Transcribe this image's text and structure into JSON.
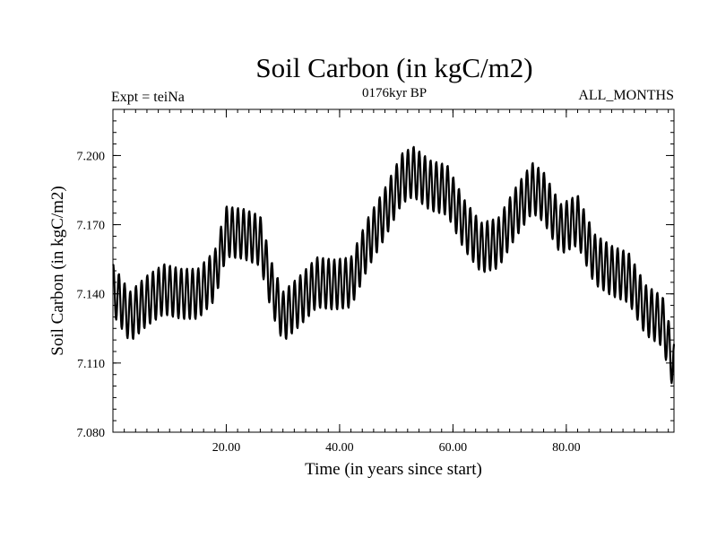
{
  "chart_data": {
    "type": "line",
    "title": "Soil Carbon (in kgC/m2)",
    "subtitle_left": "Expt = teiNa",
    "subtitle_center": "0176kyr BP",
    "subtitle_right": "ALL_MONTHS",
    "xlabel": "Time (in years since start)",
    "ylabel": "Soil Carbon (in kgC/m2)",
    "xlim": [
      0,
      99
    ],
    "ylim": [
      7.08,
      7.22
    ],
    "x_ticks": [
      20,
      40,
      60,
      80
    ],
    "x_tick_labels": [
      "20.00",
      "40.00",
      "60.00",
      "80.00"
    ],
    "y_ticks": [
      7.08,
      7.11,
      7.14,
      7.17,
      7.2
    ],
    "y_tick_labels": [
      "7.080",
      "7.110",
      "7.140",
      "7.170",
      "7.200"
    ],
    "seasonal_amplitude": 0.011,
    "series": [
      {
        "name": "Soil Carbon",
        "annual_mean_x": [
          0,
          3,
          6,
          9,
          12,
          15,
          18,
          20,
          23,
          26,
          28,
          30,
          33,
          36,
          39,
          42,
          45,
          48,
          51,
          53,
          56,
          59,
          62,
          65,
          68,
          71,
          74,
          76,
          79,
          82,
          85,
          88,
          91,
          94,
          97,
          99
        ],
        "annual_mean_y": [
          7.142,
          7.13,
          7.137,
          7.142,
          7.14,
          7.14,
          7.148,
          7.167,
          7.166,
          7.163,
          7.143,
          7.13,
          7.137,
          7.145,
          7.144,
          7.145,
          7.162,
          7.175,
          7.19,
          7.193,
          7.187,
          7.185,
          7.17,
          7.16,
          7.162,
          7.175,
          7.186,
          7.182,
          7.168,
          7.172,
          7.155,
          7.15,
          7.147,
          7.133,
          7.128,
          7.108
        ]
      }
    ]
  }
}
